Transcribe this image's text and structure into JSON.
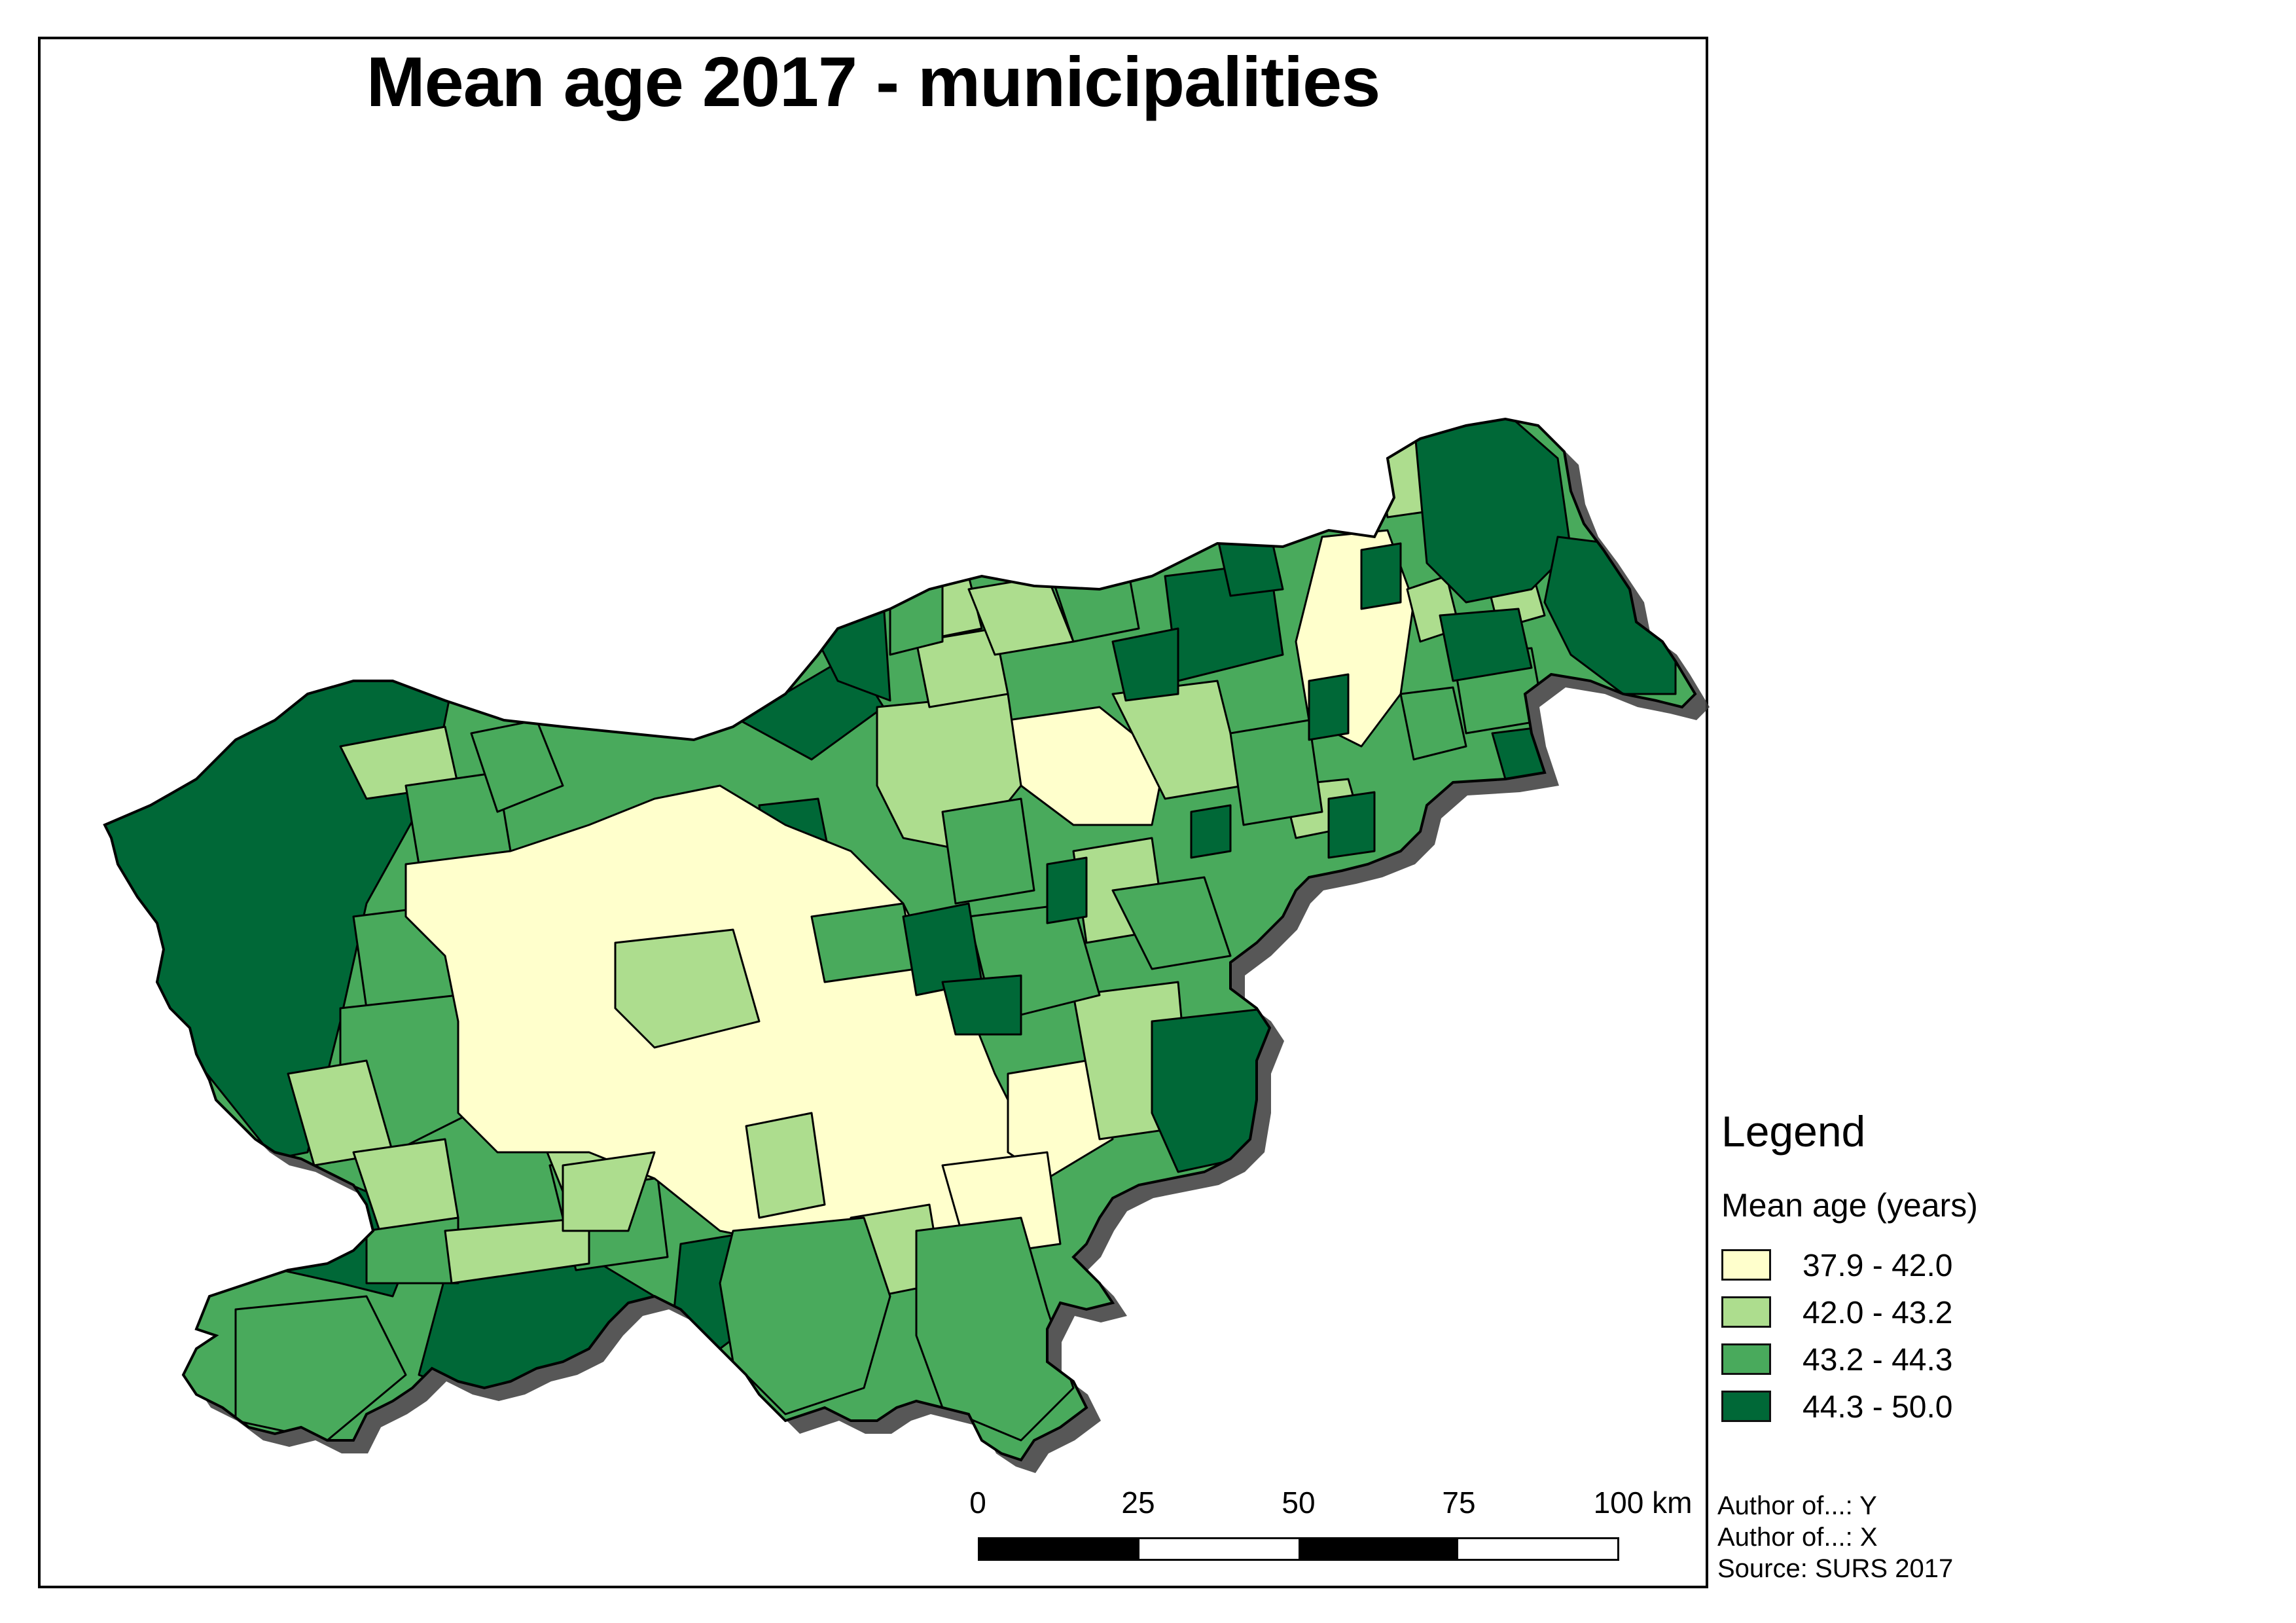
{
  "title": "Mean age 2017 - municipalities",
  "legend": {
    "heading": "Legend",
    "field": "Mean age (years)",
    "classes": [
      {
        "label": "37.9 - 42.0",
        "color": "#ffffcc"
      },
      {
        "label": "42.0 - 43.2",
        "color": "#addd8e"
      },
      {
        "label": "43.2 - 44.3",
        "color": "#49aa5c"
      },
      {
        "label": "44.3 - 50.0",
        "color": "#006837"
      }
    ]
  },
  "scale": {
    "labels": [
      "0",
      "25",
      "50",
      "75",
      "100 km"
    ],
    "segments": [
      "black",
      "white",
      "black",
      "white"
    ]
  },
  "credits": [
    "Author of...: Y",
    "Author of...: X",
    "Source: SURS 2017"
  ],
  "map": {
    "country": "Slovenia",
    "shadow": true
  }
}
